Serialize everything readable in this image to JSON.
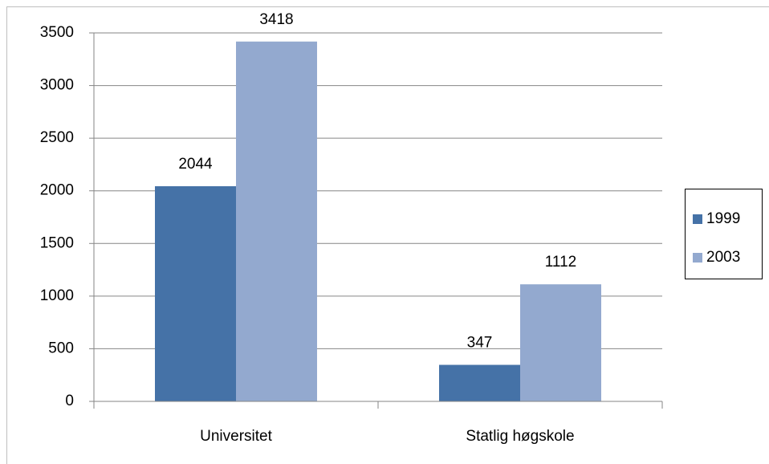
{
  "chart_data": {
    "type": "bar",
    "categories": [
      "Universitet",
      "Statlig høgskole"
    ],
    "series": [
      {
        "name": "1999",
        "color": "#4572a7",
        "values": [
          2044,
          347
        ]
      },
      {
        "name": "2003",
        "color": "#93a9cf",
        "values": [
          3418,
          1112
        ]
      }
    ],
    "ylim": [
      0,
      3500
    ],
    "yticks": [
      0,
      500,
      1000,
      1500,
      2000,
      2500,
      3000,
      3500
    ],
    "grid": true,
    "legend": "right"
  }
}
